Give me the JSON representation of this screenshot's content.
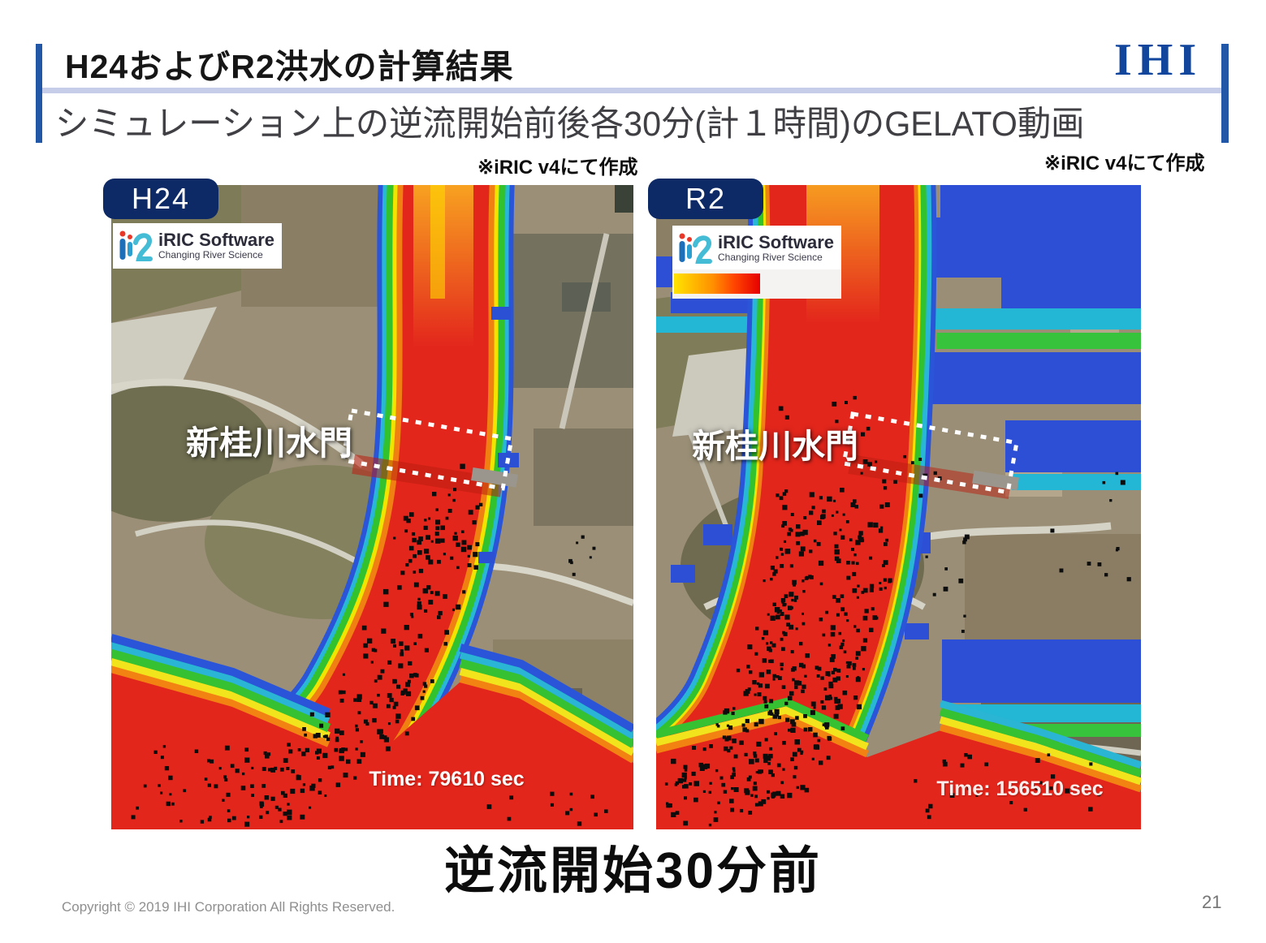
{
  "slide": {
    "title": "H24およびR2洪水の計算結果",
    "subtitle": "シミュレーション上の逆流開始前後各30分(計１時間)のGELATO動画",
    "brand": "IHI",
    "caption": "逆流開始30分前",
    "footer": {
      "copyright": "Copyright © 2019 IHI Corporation All Rights Reserved.",
      "page": "21"
    }
  },
  "notes": {
    "left": "※iRIC v4にて作成",
    "right": "※iRIC v4にて作成"
  },
  "panels": {
    "h24": {
      "label": "H24",
      "iric_name": "iRIC Software",
      "iric_tagline": "Changing River Science",
      "gate": "新桂川水門",
      "time": "Time: 79610 sec"
    },
    "r2": {
      "label": "R2",
      "iric_name": "iRIC Software",
      "iric_tagline": "Changing River Science",
      "gate": "新桂川水門",
      "time": "Time: 156510 sec"
    }
  },
  "colors": {
    "accent_navy": "#0d2a66",
    "brand_blue": "#12459c",
    "divider_lavender": "#c5cde9",
    "flood_red": "#e3261c",
    "flood_blue": "#2b50d8",
    "fringe_green": "#31c22e",
    "fringe_yellow": "#f0e400"
  }
}
